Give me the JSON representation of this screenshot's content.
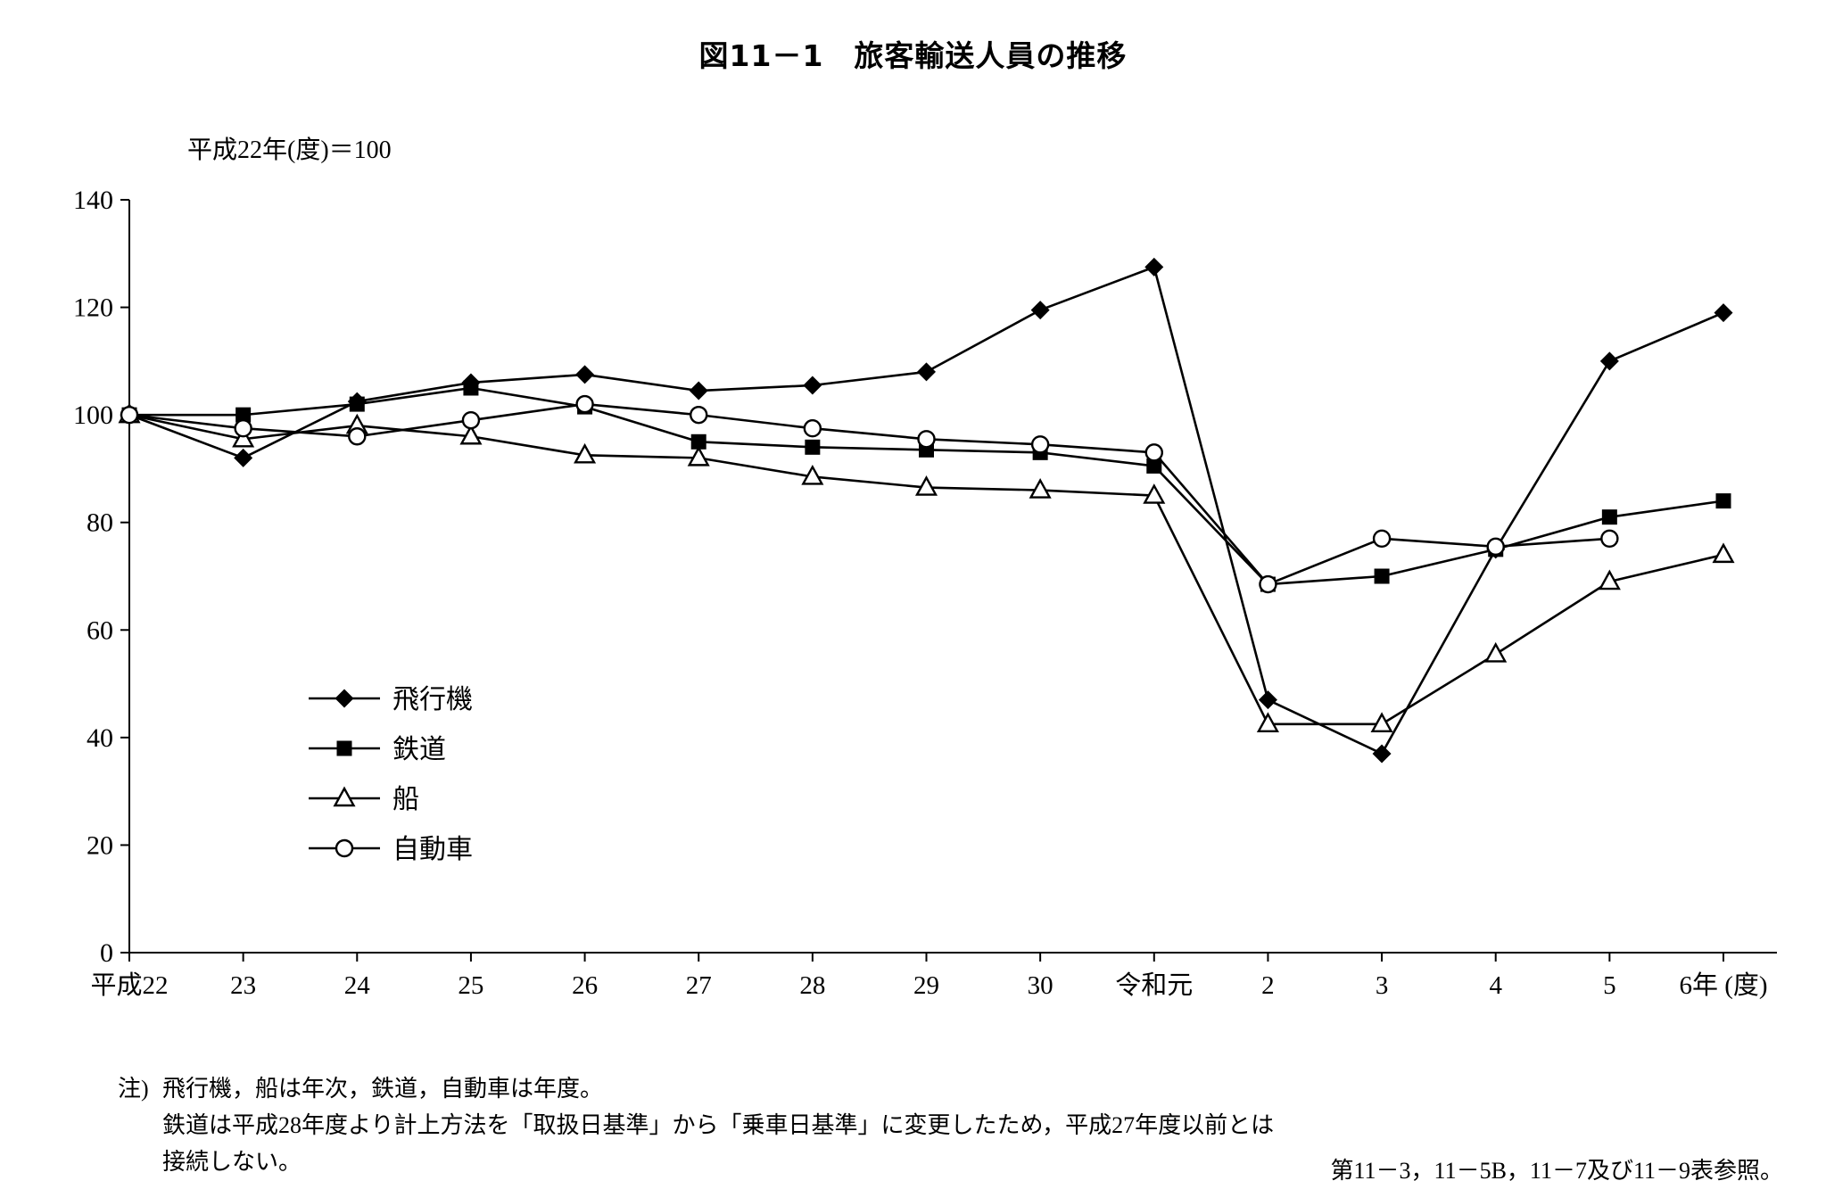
{
  "title": "図11－1　旅客輸送人員の推移",
  "subtitle": "平成22年(度)＝100",
  "notes": {
    "label": "注)",
    "line1": "飛行機，船は年次，鉄道，自動車は年度。",
    "line2": "鉄道は平成28年度より計上方法を「取扱日基準」から「乗車日基準」に変更したため，平成27年度以前とは",
    "line3": "接続しない。",
    "source": "第11－3，11－5B，11－7及び11－9表参照。"
  },
  "chart_data": {
    "type": "line",
    "title": "図11－1　旅客輸送人員の推移",
    "index_base": "平成22年(度)＝100",
    "categories": [
      "平成22",
      "23",
      "24",
      "25",
      "26",
      "27",
      "28",
      "29",
      "30",
      "令和元",
      "2",
      "3",
      "4",
      "5",
      "6年 (度)"
    ],
    "series": [
      {
        "name": "飛行機",
        "marker": "diamond-filled",
        "values": [
          100,
          92,
          102.5,
          106,
          107.5,
          104.5,
          105.5,
          108,
          119.5,
          127.5,
          47,
          37,
          75,
          110,
          119
        ]
      },
      {
        "name": "鉄道",
        "marker": "square-filled",
        "values": [
          100,
          100,
          102,
          105,
          101.5,
          95,
          94,
          93.5,
          93,
          90.5,
          68.5,
          70,
          75,
          81,
          84
        ]
      },
      {
        "name": "船",
        "marker": "triangle-open",
        "values": [
          100,
          95.5,
          98,
          96,
          92.5,
          92,
          88.5,
          86.5,
          86,
          85,
          42.5,
          42.5,
          55.5,
          69,
          74
        ]
      },
      {
        "name": "自動車",
        "marker": "circle-open",
        "values": [
          100,
          97.5,
          96,
          99,
          102,
          100,
          97.5,
          95.5,
          94.5,
          93,
          68.5,
          77,
          75.5,
          77,
          null
        ]
      }
    ],
    "ylim": [
      0,
      140
    ],
    "ytick_step": 20,
    "grid": false,
    "legend_position": "inside-left",
    "line_color": "#000000"
  }
}
